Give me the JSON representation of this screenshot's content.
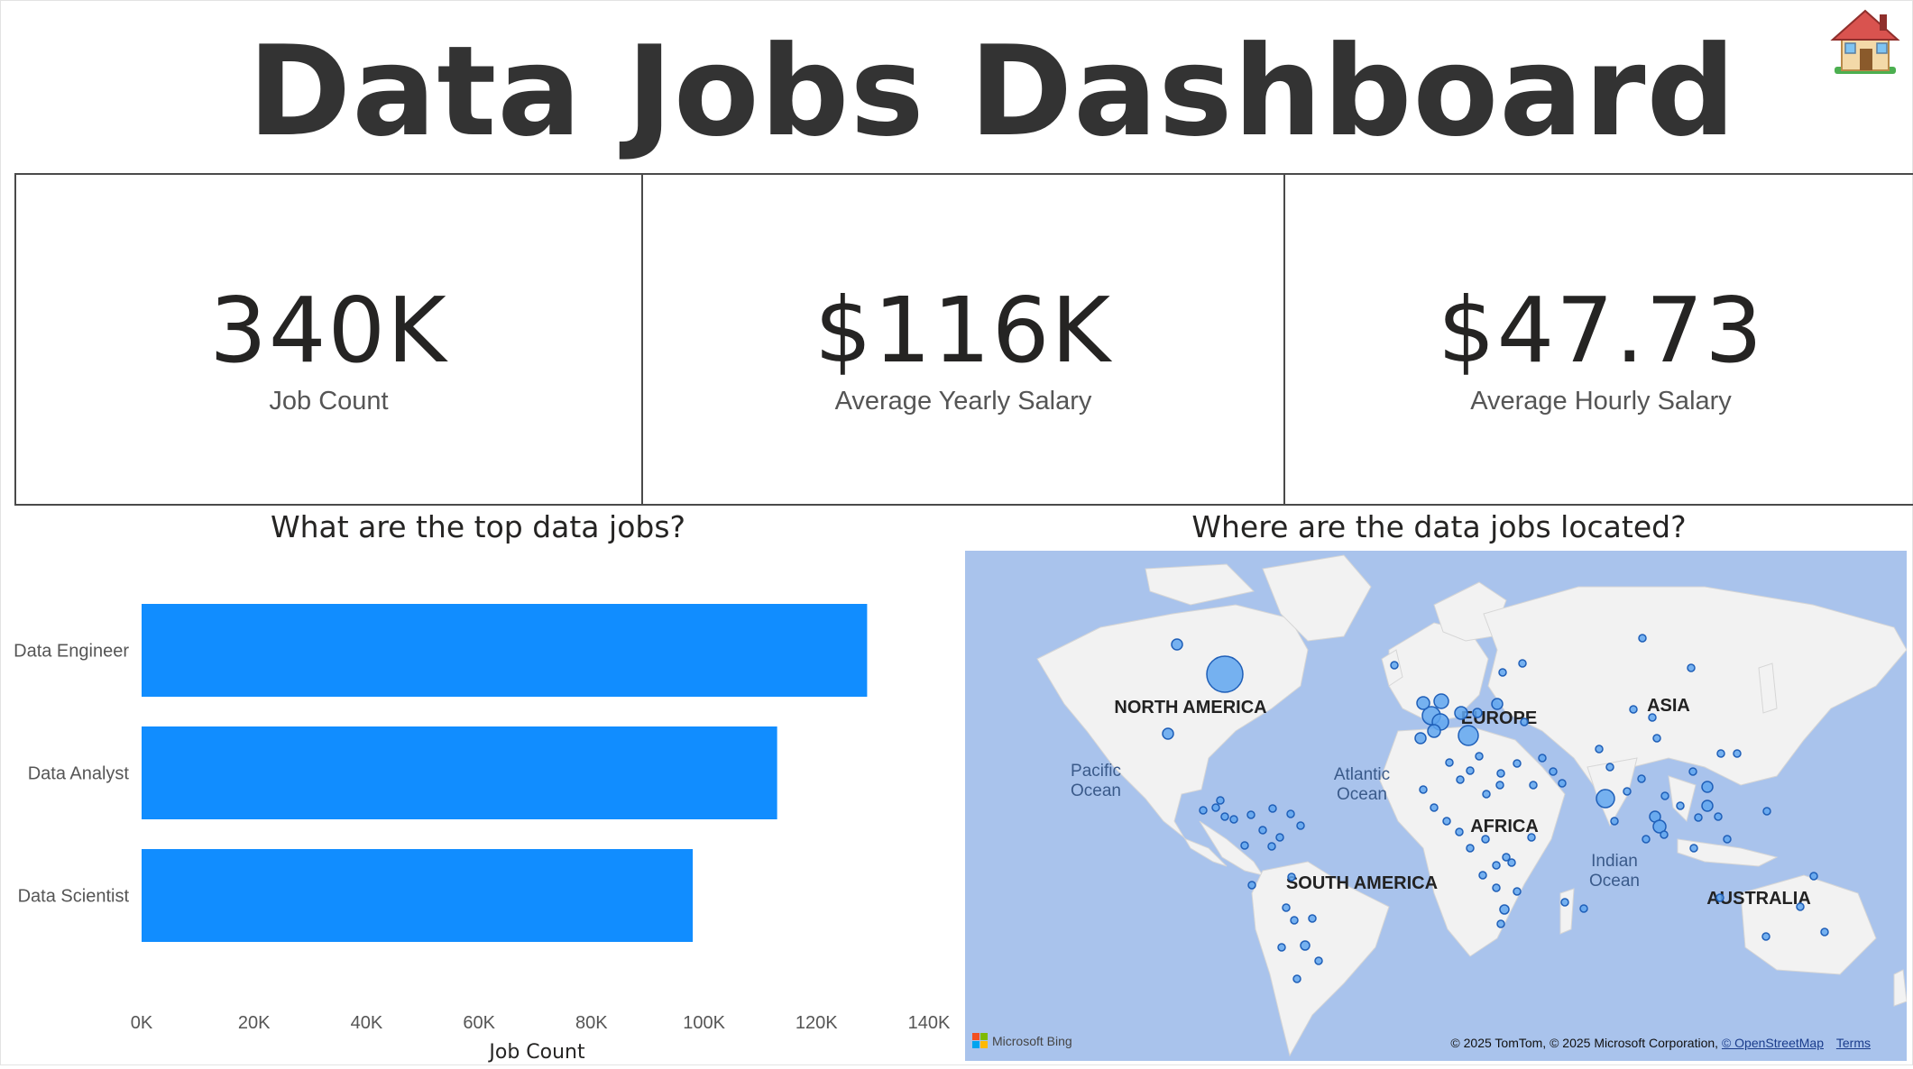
{
  "page": {
    "title": "Data Jobs Dashboard",
    "home_icon": "house-icon"
  },
  "kpis": [
    {
      "value": "340K",
      "label": "Job Count"
    },
    {
      "value": "$116K",
      "label": "Average Yearly Salary"
    },
    {
      "value": "$47.73",
      "label": "Average Hourly Salary"
    }
  ],
  "bar_section": {
    "title": "What are the top data jobs?"
  },
  "map_section": {
    "title": "Where are the data jobs located?",
    "region_labels": [
      "NORTH AMERICA",
      "EUROPE",
      "ASIA",
      "AFRICA",
      "SOUTH AMERICA",
      "AUSTRALIA"
    ],
    "ocean_labels": [
      "Pacific Ocean",
      "Atlantic Ocean",
      "Indian Ocean"
    ],
    "brand": "Microsoft Bing",
    "attribution_text": "© 2025 TomTom, © 2025 Microsoft Corporation,",
    "attribution_link": "© OpenStreetMap",
    "terms_link": "Terms",
    "colors": {
      "water": "#a9c3ec",
      "land": "#f2f2f2",
      "bubble_fill": "#5fa6f0",
      "bubble_stroke": "#1f5fb8"
    }
  },
  "chart_data": {
    "type": "bar",
    "orientation": "horizontal",
    "categories": [
      "Data Engineer",
      "Data Analyst",
      "Data Scientist"
    ],
    "values": [
      129000,
      113000,
      98000
    ],
    "xlabel": "Job Count",
    "xlim": [
      0,
      140000
    ],
    "xticks": [
      "0K",
      "20K",
      "40K",
      "60K",
      "80K",
      "100K",
      "120K",
      "140K"
    ],
    "color": "#118dff",
    "grid": false
  }
}
